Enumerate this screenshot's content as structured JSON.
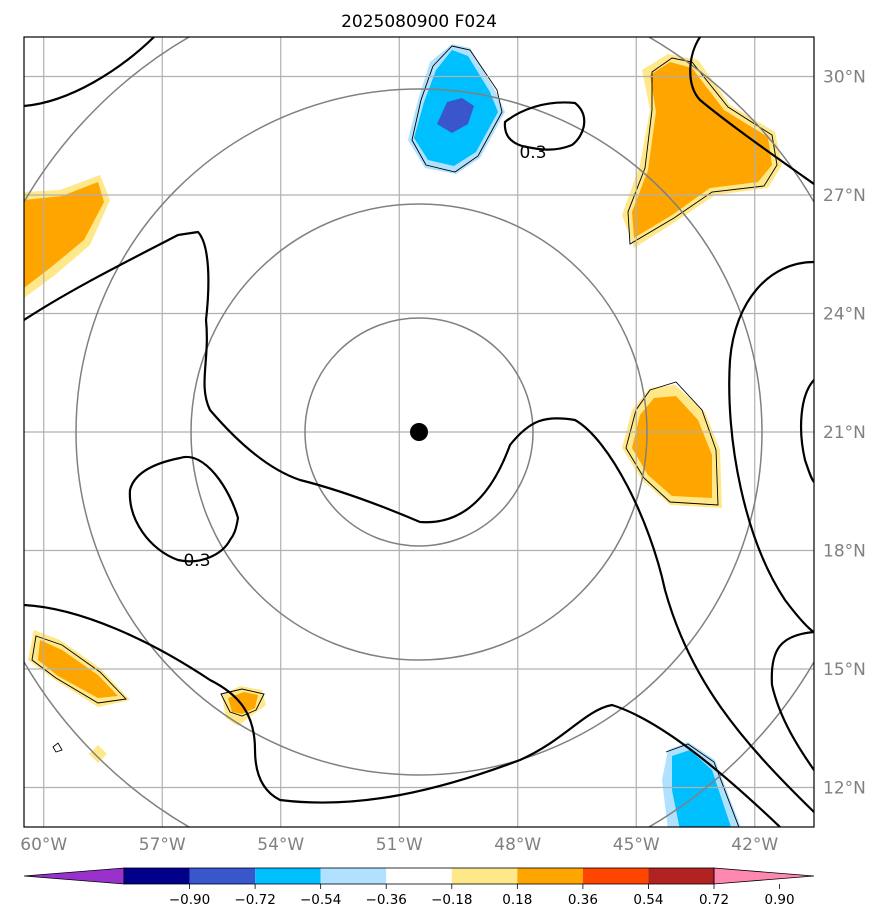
{
  "title": "2025080900 F024",
  "map": {
    "lon_range": [
      -60.5,
      -40.5
    ],
    "lat_range": [
      11,
      31
    ],
    "lon_ticks": [
      {
        "value": -60,
        "label": "60°W"
      },
      {
        "value": -57,
        "label": "57°W"
      },
      {
        "value": -54,
        "label": "54°W"
      },
      {
        "value": -51,
        "label": "51°W"
      },
      {
        "value": -48,
        "label": "48°W"
      },
      {
        "value": -45,
        "label": "45°W"
      },
      {
        "value": -42,
        "label": "42°W"
      }
    ],
    "lat_ticks": [
      {
        "value": 12,
        "label": "12°N"
      },
      {
        "value": 15,
        "label": "15°N"
      },
      {
        "value": 18,
        "label": "18°N"
      },
      {
        "value": 21,
        "label": "21°N"
      },
      {
        "value": 24,
        "label": "24°N"
      },
      {
        "value": 27,
        "label": "27°N"
      },
      {
        "value": 30,
        "label": "30°N"
      }
    ],
    "center": {
      "lon": -50.5,
      "lat": 21.2
    },
    "contour_labels": [
      "0.3",
      "0.3"
    ]
  },
  "colorbar": {
    "ticks": [
      "−0.90",
      "−0.72",
      "−0.54",
      "−0.36",
      "−0.18",
      "0.18",
      "0.36",
      "0.54",
      "0.72",
      "0.90"
    ],
    "colors": [
      "#9932cc",
      "#00008b",
      "#3a56cc",
      "#00bfff",
      "#b0e2ff",
      "#ffffff",
      "#ffe88a",
      "#ffa500",
      "#ff4500",
      "#b22222",
      "#ff88b0"
    ]
  }
}
